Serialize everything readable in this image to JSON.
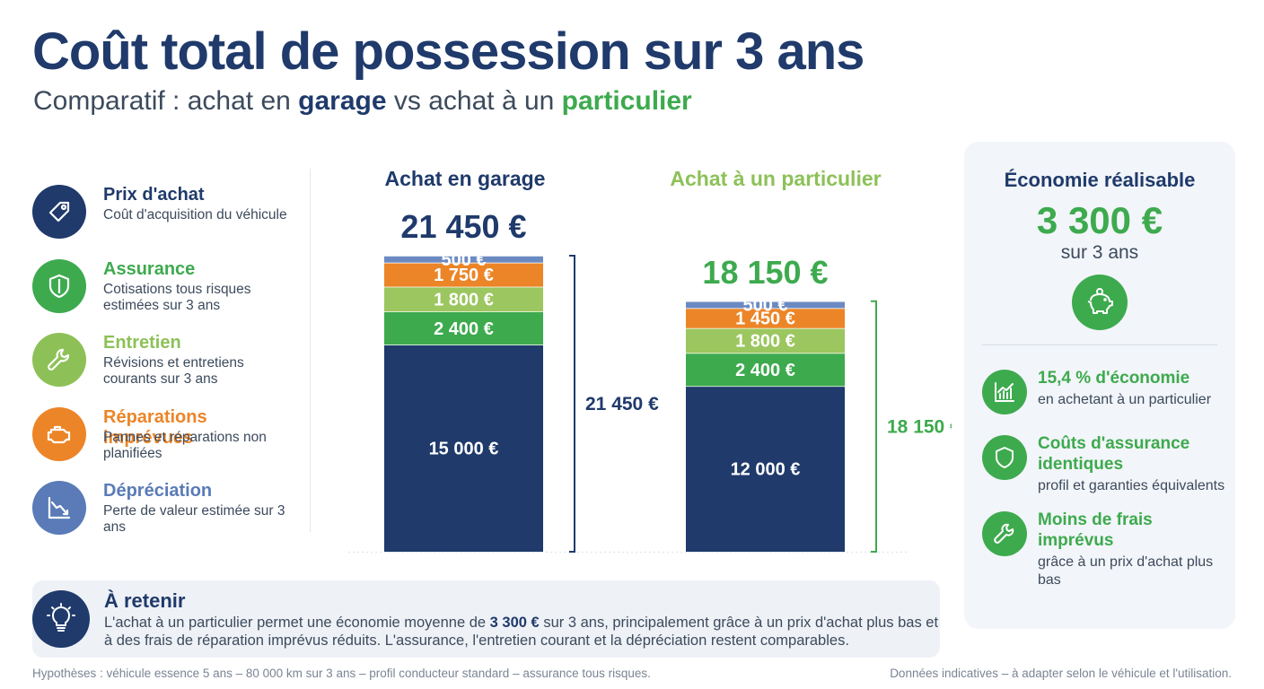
{
  "header": {
    "title": "Coût total de possession sur 3 ans",
    "subtitle_prefix": "Comparatif : achat en ",
    "subtitle_kw1": "garage",
    "subtitle_mid": " vs achat à un ",
    "subtitle_kw2": "particulier"
  },
  "legend": [
    {
      "title": "Prix d'achat",
      "desc": "Coût d'acquisition du véhicule",
      "color": "#1f3a6b",
      "icon": "price-tag-icon"
    },
    {
      "title": "Assurance",
      "desc": "Cotisations tous risques estimées sur 3 ans",
      "color": "#3daa4e",
      "icon": "shield-icon"
    },
    {
      "title": "Entretien",
      "desc": "Révisions et entretiens courants sur 3 ans",
      "color": "#8dc158",
      "icon": "wrench-icon"
    },
    {
      "title": "Réparations imprévues",
      "desc": "Pannes et réparations non planifiées",
      "color": "#ec8527",
      "icon": "engine-icon"
    },
    {
      "title": "Dépréciation",
      "desc": "Perte de valeur estimée sur 3 ans",
      "color": "#5a7bb8",
      "icon": "depreciation-chart-icon"
    }
  ],
  "chart_data": {
    "type": "bar",
    "stacked": true,
    "categories": [
      "Achat en garage",
      "Achat à un particulier"
    ],
    "category_colors": [
      "#1f3a6b",
      "#8dc158"
    ],
    "totals": [
      21450,
      18150
    ],
    "total_labels": [
      "21 450 €",
      "18 150 €"
    ],
    "total_colors": [
      "#1f3a6b",
      "#3daa4e"
    ],
    "series": [
      {
        "name": "Prix d'achat",
        "values": [
          15000,
          12000
        ],
        "labels": [
          "15 000 €",
          "12 000 €"
        ],
        "color": "#1f3a6b"
      },
      {
        "name": "Assurance",
        "values": [
          2400,
          2400
        ],
        "labels": [
          "2 400 €",
          "2 400 €"
        ],
        "color": "#3daa4e"
      },
      {
        "name": "Entretien",
        "values": [
          1800,
          1800
        ],
        "labels": [
          "1 800 €",
          "1 800 €"
        ],
        "color": "#9cc65f"
      },
      {
        "name": "Réparations imprévues",
        "values": [
          1750,
          1450
        ],
        "labels": [
          "1 750 €",
          "1 450 €"
        ],
        "color": "#ec8527"
      },
      {
        "name": "Dépréciation",
        "values": [
          500,
          500
        ],
        "labels": [
          "500 €",
          "500 €"
        ],
        "color": "#6b8ac2"
      }
    ]
  },
  "savings": {
    "title": "Économie réalisable",
    "amount": "3 300 €",
    "period": "sur 3 ans",
    "benefits": [
      {
        "title": "15,4 % d'économie",
        "desc": "en achetant à un particulier",
        "icon": "growth-chart-icon"
      },
      {
        "title": "Coûts d'assurance identiques",
        "desc": "profil et garanties équivalents",
        "icon": "shield-icon"
      },
      {
        "title": "Moins de frais imprévus",
        "desc": "grâce à un prix d'achat plus bas",
        "icon": "wrench-icon"
      }
    ]
  },
  "takeaway": {
    "title": "À retenir",
    "text_before": "L'achat à un particulier permet une économie moyenne de ",
    "text_bold": "3 300 €",
    "text_after": " sur 3 ans, principalement grâce à un prix d'achat plus bas et à des frais de réparation imprévus réduits. L'assurance, l'entretien courant et la dépréciation restent comparables."
  },
  "footer": {
    "left": "Hypothèses : véhicule essence 5 ans – 80 000 km sur 3 ans – profil conducteur standard – assurance tous risques.",
    "right": "Données indicatives – à adapter selon le véhicule et l'utilisation."
  }
}
